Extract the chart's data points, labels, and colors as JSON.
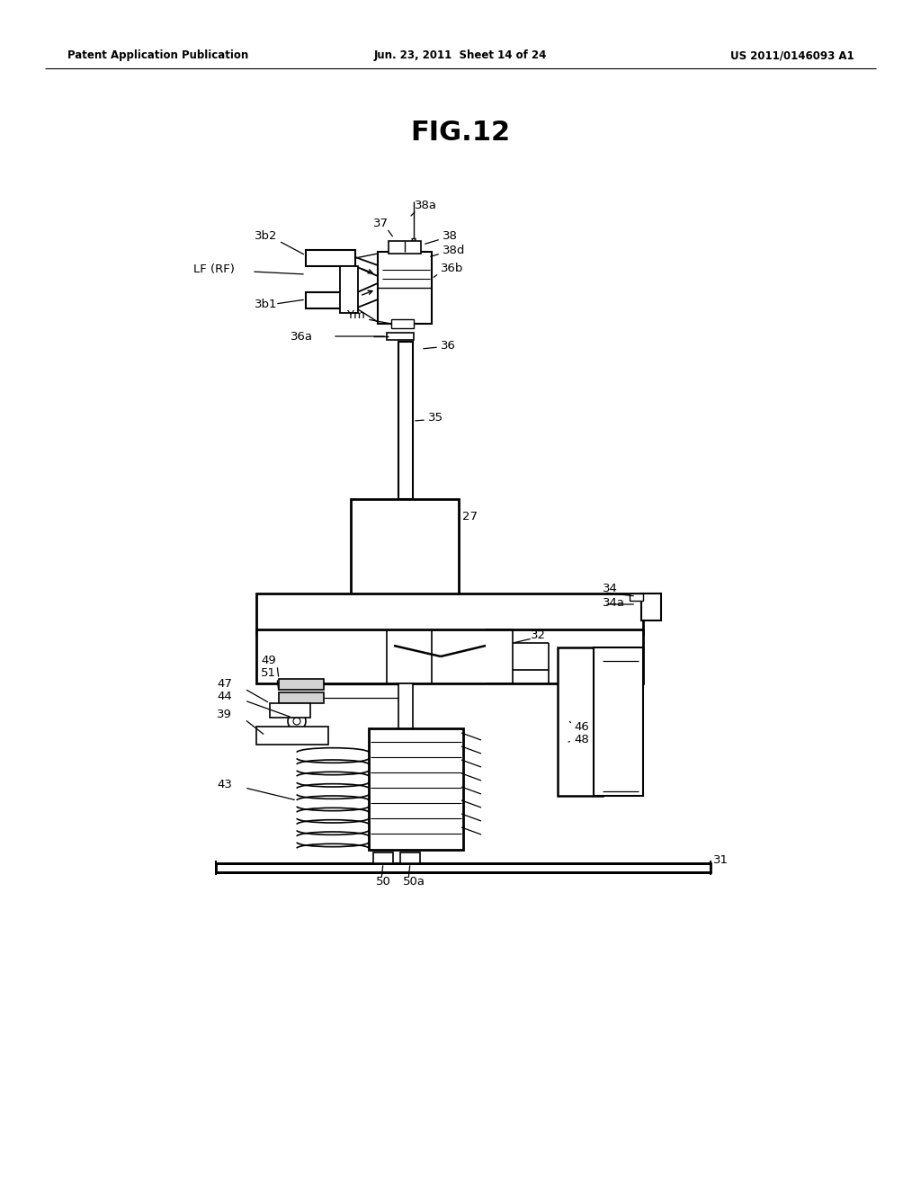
{
  "title": "FIG.12",
  "header_left": "Patent Application Publication",
  "header_center": "Jun. 23, 2011  Sheet 14 of 24",
  "header_right": "US 2011/0146093 A1",
  "bg_color": "#ffffff",
  "text_color": "#000000"
}
